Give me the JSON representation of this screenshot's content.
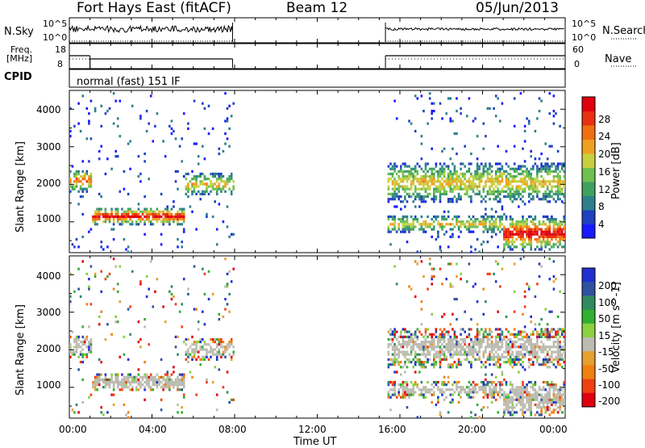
{
  "header": {
    "station": "Fort Hays East (fitACF)",
    "beam": "Beam 12",
    "date": "05/Jun/2013"
  },
  "strip_labels": {
    "nsky": "N.Sky",
    "freq_line1": "Freq.",
    "freq_line2": "[MHz]",
    "cpid": "CPID",
    "nsearch": "N.Search",
    "nave": "Nave",
    "nsky_ticks": [
      "10^5",
      "10^0"
    ],
    "nsearch_ticks": [
      "10^5",
      "10^0"
    ],
    "freq_ticks": [
      "18",
      "8"
    ],
    "nave_ticks": [
      "60",
      "0"
    ]
  },
  "cpid_text": "normal (fast) 151 IF",
  "colors": {
    "power_scale": [
      "#1a1aff",
      "#2040c0",
      "#2e7f8c",
      "#40a060",
      "#6fc050",
      "#c8d040",
      "#f0a020",
      "#f07010",
      "#e83010",
      "#e00010"
    ],
    "velocity_scale": [
      "#2030d0",
      "#3050a0",
      "#2f8a60",
      "#30b030",
      "#8ad040",
      "#bbbbb0",
      "#e6a030",
      "#f08010",
      "#f04010",
      "#e00010"
    ]
  },
  "chart_data": [
    {
      "type": "heatmap",
      "title": "Power",
      "xlabel": "Time UT",
      "ylabel": "Slant Range [km]",
      "x_ticks": [
        "00:00",
        "04:00",
        "08:00",
        "12:00",
        "16:00",
        "20:00",
        "00:00"
      ],
      "x_range_hours": [
        0,
        24
      ],
      "y_ticks": [
        1000,
        2000,
        3000,
        4000
      ],
      "y_range_km": [
        180,
        4500
      ],
      "colorbar_label": "Power [dB]",
      "colorbar_ticks": [
        4,
        8,
        12,
        16,
        20,
        24,
        28
      ],
      "data_gaps_hours": [
        [
          7.9,
          15.3
        ]
      ],
      "echo_bands": [
        {
          "hours": [
            0.0,
            1.0
          ],
          "range_km": [
            1900,
            2300
          ],
          "level": "mid-high"
        },
        {
          "hours": [
            1.0,
            5.5
          ],
          "range_km": [
            1000,
            1300
          ],
          "level": "high"
        },
        {
          "hours": [
            5.5,
            7.9
          ],
          "range_km": [
            1800,
            2200
          ],
          "level": "mid"
        },
        {
          "hours": [
            15.3,
            24.0
          ],
          "range_km": [
            1700,
            2400
          ],
          "level": "mid"
        },
        {
          "hours": [
            15.3,
            21.0
          ],
          "range_km": [
            800,
            1100
          ],
          "level": "mid"
        },
        {
          "hours": [
            21.0,
            24.0
          ],
          "range_km": [
            400,
            1000
          ],
          "level": "high"
        }
      ]
    },
    {
      "type": "heatmap",
      "title": "Velocity",
      "xlabel": "Time UT",
      "ylabel": "Slant Range [km]",
      "x_ticks": [
        "00:00",
        "04:00",
        "08:00",
        "12:00",
        "16:00",
        "20:00",
        "00:00"
      ],
      "x_range_hours": [
        0,
        24
      ],
      "y_ticks": [
        1000,
        2000,
        3000,
        4000
      ],
      "y_range_km": [
        180,
        4500
      ],
      "colorbar_label": "Velocity [m s^-1]",
      "colorbar_ticks": [
        200,
        100,
        50,
        15,
        -15,
        -50,
        -100,
        -200
      ],
      "data_gaps_hours": [
        [
          7.9,
          15.3
        ]
      ]
    },
    {
      "type": "line",
      "title": "N.Sky / N.Search",
      "y_ticks": [
        "10^5",
        "10^0"
      ]
    },
    {
      "type": "line",
      "title": "Freq. / Nave",
      "freq_ticks_mhz": [
        18,
        8
      ],
      "nave_ticks": [
        60,
        0
      ],
      "freq_mhz_segments": [
        {
          "hours": [
            0,
            1.0
          ],
          "value": 13.5
        },
        {
          "hours": [
            1.0,
            7.9
          ],
          "value": 11.5
        },
        {
          "hours": [
            15.3,
            24
          ],
          "value": 13.5
        }
      ]
    }
  ]
}
